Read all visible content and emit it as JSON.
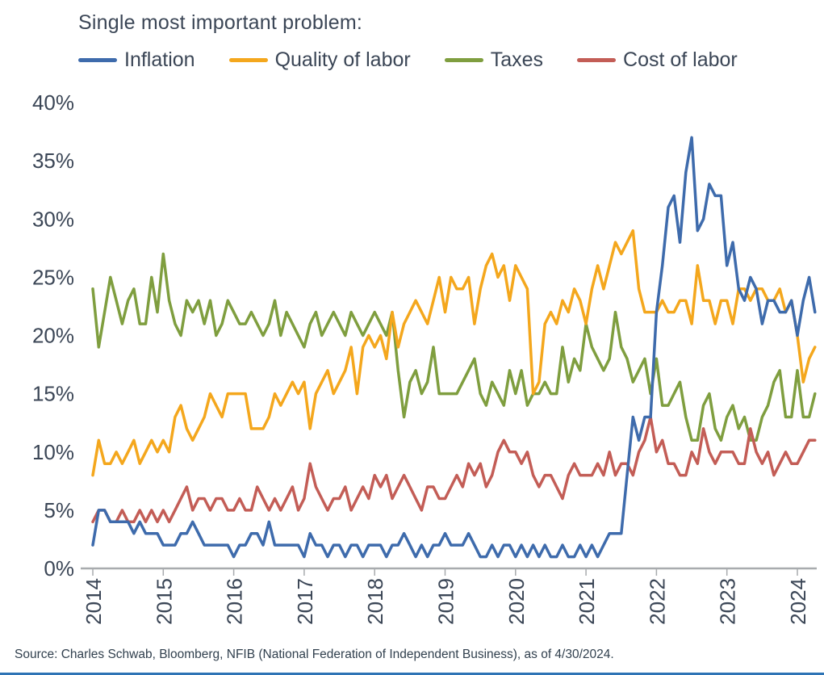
{
  "title": "Single most important problem:",
  "source": "Source: Charles Schwab, Bloomberg, NFIB (National Federation of Independent Business), as of 4/30/2024.",
  "colors": {
    "text": "#3b4656",
    "baseline": "#a8abae",
    "footer_rule": "#2e74b5"
  },
  "chart_data": {
    "type": "line",
    "title": "Single most important problem:",
    "x_unit": "month",
    "x_start": "2014-01",
    "x_end": "2024-04",
    "xlabel": "",
    "ylabel": "",
    "ylim": [
      0,
      40
    ],
    "grid": false,
    "legend_position": "top",
    "yticks": [
      "0%",
      "5%",
      "10%",
      "15%",
      "20%",
      "25%",
      "30%",
      "35%",
      "40%"
    ],
    "xticks": [
      "2014",
      "2015",
      "2016",
      "2017",
      "2018",
      "2019",
      "2020",
      "2021",
      "2022",
      "2023",
      "2024"
    ],
    "series": [
      {
        "name": "Inflation",
        "color": "#3e6bac",
        "values": [
          2,
          5,
          5,
          4,
          4,
          4,
          4,
          3,
          4,
          3,
          3,
          3,
          2,
          2,
          2,
          3,
          3,
          4,
          3,
          2,
          2,
          2,
          2,
          2,
          1,
          2,
          2,
          3,
          3,
          2,
          4,
          2,
          2,
          2,
          2,
          2,
          1,
          3,
          2,
          2,
          1,
          2,
          2,
          1,
          2,
          2,
          1,
          2,
          2,
          2,
          1,
          2,
          2,
          3,
          2,
          1,
          2,
          1,
          2,
          2,
          3,
          2,
          2,
          2,
          3,
          2,
          1,
          1,
          2,
          1,
          2,
          2,
          1,
          2,
          1,
          2,
          1,
          2,
          1,
          1,
          2,
          1,
          1,
          2,
          1,
          2,
          1,
          2,
          3,
          3,
          3,
          8,
          13,
          11,
          13,
          13,
          22,
          26,
          31,
          32,
          28,
          34,
          37,
          29,
          30,
          33,
          32,
          32,
          26,
          28,
          24,
          23,
          25,
          24,
          21,
          23,
          23,
          22,
          22,
          23,
          20,
          23,
          25,
          22
        ]
      },
      {
        "name": "Quality of labor",
        "color": "#f4a71d",
        "values": [
          8,
          11,
          9,
          9,
          10,
          9,
          10,
          11,
          9,
          10,
          11,
          10,
          11,
          10,
          13,
          14,
          12,
          11,
          12,
          13,
          15,
          14,
          13,
          15,
          15,
          15,
          15,
          12,
          12,
          12,
          13,
          15,
          14,
          15,
          16,
          15,
          16,
          12,
          15,
          16,
          17,
          15,
          16,
          17,
          19,
          15,
          19,
          20,
          19,
          20,
          18,
          22,
          19,
          21,
          22,
          23,
          22,
          21,
          23,
          25,
          22,
          25,
          24,
          24,
          25,
          21,
          24,
          26,
          27,
          25,
          26,
          23,
          26,
          25,
          24,
          15,
          16,
          21,
          22,
          21,
          23,
          22,
          24,
          23,
          21,
          24,
          26,
          24,
          26,
          28,
          27,
          28,
          29,
          24,
          22,
          22,
          22,
          23,
          22,
          22,
          23,
          23,
          21,
          26,
          23,
          23,
          21,
          23,
          23,
          21,
          24,
          24,
          23,
          24,
          24,
          23,
          23,
          24,
          22,
          23,
          20,
          16,
          18,
          19
        ]
      },
      {
        "name": "Taxes",
        "color": "#7f9e3f",
        "values": [
          24,
          19,
          22,
          25,
          23,
          21,
          23,
          24,
          21,
          21,
          25,
          22,
          27,
          23,
          21,
          20,
          23,
          22,
          23,
          21,
          23,
          20,
          21,
          23,
          22,
          21,
          21,
          22,
          21,
          20,
          21,
          23,
          20,
          22,
          21,
          20,
          19,
          21,
          22,
          20,
          21,
          22,
          21,
          20,
          22,
          21,
          20,
          21,
          22,
          21,
          20,
          22,
          17,
          13,
          16,
          17,
          15,
          16,
          19,
          15,
          15,
          15,
          15,
          16,
          17,
          18,
          15,
          14,
          16,
          15,
          14,
          17,
          15,
          17,
          14,
          15,
          15,
          16,
          15,
          15,
          19,
          16,
          18,
          17,
          21,
          19,
          18,
          17,
          18,
          22,
          19,
          18,
          16,
          17,
          18,
          15,
          18,
          14,
          14,
          15,
          16,
          13,
          11,
          11,
          14,
          15,
          12,
          11,
          13,
          14,
          12,
          13,
          11,
          11,
          13,
          14,
          16,
          17,
          13,
          13,
          17,
          13,
          13,
          15
        ]
      },
      {
        "name": "Cost of labor",
        "color": "#c35d56",
        "values": [
          4,
          5,
          5,
          4,
          4,
          5,
          4,
          4,
          5,
          4,
          5,
          4,
          5,
          4,
          5,
          6,
          7,
          5,
          6,
          6,
          5,
          6,
          6,
          5,
          5,
          6,
          5,
          5,
          7,
          6,
          5,
          6,
          5,
          6,
          7,
          5,
          6,
          9,
          7,
          6,
          5,
          6,
          6,
          7,
          5,
          6,
          7,
          6,
          8,
          7,
          8,
          6,
          7,
          8,
          7,
          6,
          5,
          7,
          7,
          6,
          6,
          7,
          8,
          7,
          9,
          8,
          9,
          7,
          8,
          10,
          11,
          10,
          10,
          9,
          10,
          8,
          7,
          8,
          8,
          7,
          6,
          8,
          9,
          8,
          8,
          8,
          9,
          8,
          10,
          8,
          9,
          9,
          8,
          10,
          11,
          13,
          10,
          11,
          9,
          9,
          8,
          8,
          10,
          9,
          12,
          10,
          9,
          10,
          10,
          10,
          9,
          9,
          12,
          10,
          9,
          10,
          8,
          9,
          10,
          9,
          9,
          10,
          11,
          11
        ]
      }
    ]
  }
}
